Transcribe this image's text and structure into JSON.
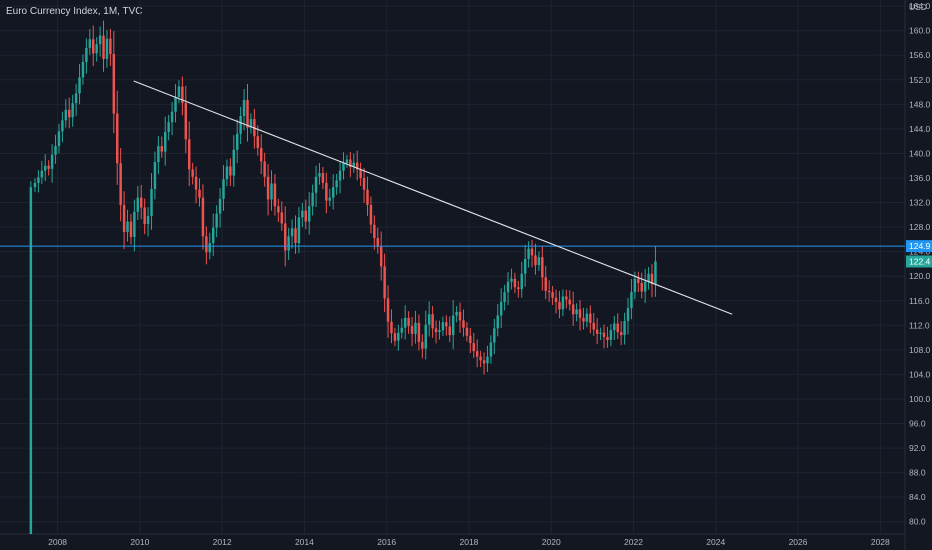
{
  "header": {
    "title": "Euro Currency Index, 1M, TVC"
  },
  "chart_data": {
    "type": "candlestick",
    "title": "Euro Currency Index, 1M, TVC",
    "currency": "USD",
    "ylim": [
      78,
      165
    ],
    "y_ticks": [
      80,
      84,
      88,
      92,
      96,
      100,
      104,
      108,
      112,
      116,
      120,
      124,
      128,
      132,
      136,
      140,
      144,
      148,
      152,
      156,
      160,
      164
    ],
    "y_tick_labels": [
      "80.0",
      "84.0",
      "88.0",
      "92.0",
      "96.0",
      "100.0",
      "104.0",
      "108.0",
      "112.0",
      "116.0",
      "120.0",
      "124.0",
      "128.0",
      "132.0",
      "136.0",
      "140.0",
      "144.0",
      "148.0",
      "152.0",
      "156.0",
      "160.0",
      "164.0"
    ],
    "xlim": [
      2006.6,
      2028.6
    ],
    "x_ticks": [
      2008,
      2010,
      2012,
      2014,
      2016,
      2018,
      2020,
      2022,
      2024,
      2026,
      2028
    ],
    "x_tick_labels": [
      "2008",
      "2010",
      "2012",
      "2014",
      "2016",
      "2018",
      "2020",
      "2022",
      "2024",
      "2026",
      "2028"
    ],
    "grid": true,
    "colors": {
      "up": "#26a69a",
      "down": "#ef5350",
      "trendline": "#e0e3eb",
      "hline": "#2196f3",
      "background": "#131722"
    },
    "first_bar": {
      "year": 2007.35,
      "open": 78,
      "close": 134.5,
      "high": 135.5,
      "low": 78
    },
    "monthly_close": [
      135.2,
      136.1,
      137.2,
      138.0,
      137.5,
      139.8,
      141.2,
      143.6,
      145.4,
      147.1,
      145.9,
      148.2,
      149.8,
      152.4,
      154.9,
      157.2,
      158.6,
      156.3,
      157.8,
      159.2,
      155.4,
      158.7,
      156.2,
      146.5,
      138.4,
      131.6,
      127.2,
      128.9,
      126.4,
      130.5,
      132.8,
      131.2,
      128.5,
      129.8,
      134.2,
      138.6,
      141.2,
      140.3,
      143.5,
      145.1,
      146.8,
      149.2,
      150.9,
      148.2,
      142.3,
      137.4,
      136.2,
      134.1,
      132.8,
      126.5,
      123.9,
      125.4,
      127.9,
      130.2,
      132.6,
      135.8,
      137.9,
      136.4,
      140.6,
      143.2,
      146.1,
      148.7,
      144.2,
      145.6,
      142.8,
      140.9,
      138.7,
      136.2,
      132.5,
      135.1,
      131.4,
      130.4,
      128.6,
      124.2,
      126.5,
      127.8,
      125.4,
      129.6,
      130.7,
      128.9,
      131.4,
      133.6,
      136.2,
      136.8,
      135.2,
      132.3,
      132.8,
      134.5,
      135.6,
      137.2,
      138.4,
      139.0,
      137.8,
      138.5,
      137.4,
      136.0,
      134.1,
      131.6,
      128.4,
      126.2,
      124.8,
      121.6,
      116.4,
      112.6,
      110.7,
      109.5,
      110.8,
      111.6,
      113.2,
      111.9,
      110.6,
      112.4,
      109.3,
      108.2,
      112.1,
      113.8,
      111.5,
      110.9,
      111.2,
      112.5,
      111.8,
      110.4,
      113.6,
      114.2,
      112.8,
      111.6,
      110.3,
      109.1,
      107.8,
      106.9,
      106.3,
      105.8,
      106.9,
      109.2,
      111.5,
      113.6,
      115.8,
      117.4,
      119.1,
      119.6,
      118.2,
      117.9,
      120.4,
      122.8,
      124.5,
      123.4,
      121.8,
      123.1,
      119.8,
      117.6,
      117.4,
      116.5,
      115.8,
      114.6,
      116.7,
      116.2,
      115.4,
      113.8,
      114.6,
      113.2,
      112.6,
      113.9,
      112.4,
      111.3,
      110.6,
      110.8,
      110.1,
      109.6,
      111.2,
      112.3,
      110.9,
      110.4,
      112.7,
      114.8,
      117.4,
      119.6,
      118.9,
      117.5,
      119.1,
      120.4,
      118.7,
      122.4
    ],
    "start_year": 2007.45,
    "trendline": {
      "start": {
        "x": 2009.85,
        "y": 151.8
      },
      "end": {
        "x": 2024.4,
        "y": 113.8
      }
    },
    "horizontal_line": {
      "y": 124.9
    },
    "price_tags": [
      {
        "value": 124.9,
        "label": "124.9",
        "color": "#2196f3"
      },
      {
        "value": 122.4,
        "label": "122.4",
        "color": "#26a69a"
      }
    ]
  }
}
